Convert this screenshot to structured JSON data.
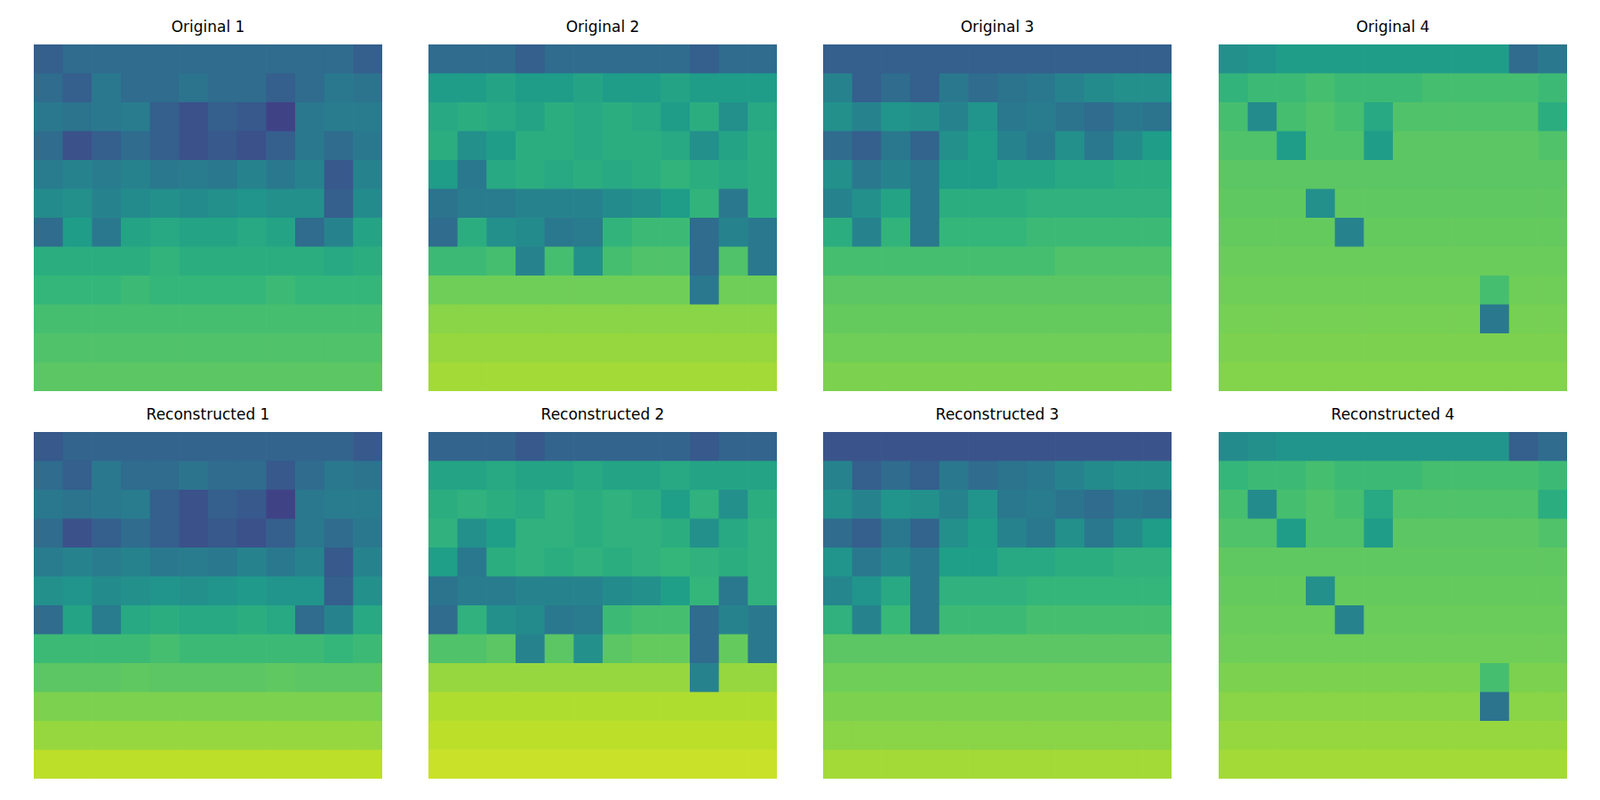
{
  "chart_data": [
    {
      "type": "heatmap",
      "title": "Original 1",
      "tick_labels": false,
      "value_range": [
        0,
        100
      ],
      "cells": [
        [
          30,
          35,
          35,
          35,
          35,
          35,
          35,
          35,
          35,
          35,
          35,
          30
        ],
        [
          35,
          30,
          40,
          35,
          35,
          38,
          35,
          35,
          30,
          35,
          40,
          38
        ],
        [
          40,
          38,
          40,
          42,
          30,
          25,
          30,
          28,
          20,
          40,
          42,
          42
        ],
        [
          35,
          25,
          30,
          35,
          30,
          25,
          28,
          25,
          30,
          40,
          35,
          40
        ],
        [
          42,
          45,
          42,
          45,
          40,
          42,
          40,
          45,
          40,
          45,
          28,
          45
        ],
        [
          48,
          50,
          45,
          48,
          50,
          48,
          50,
          52,
          50,
          50,
          30,
          48
        ],
        [
          35,
          55,
          40,
          58,
          60,
          58,
          58,
          60,
          58,
          35,
          45,
          58
        ],
        [
          62,
          62,
          62,
          62,
          65,
          62,
          62,
          62,
          62,
          62,
          60,
          62
        ],
        [
          66,
          66,
          66,
          68,
          66,
          66,
          66,
          66,
          68,
          66,
          66,
          66
        ],
        [
          70,
          70,
          70,
          70,
          70,
          70,
          70,
          70,
          70,
          70,
          70,
          70
        ],
        [
          72,
          72,
          72,
          72,
          72,
          72,
          72,
          72,
          72,
          72,
          72,
          72
        ],
        [
          74,
          74,
          74,
          74,
          74,
          74,
          74,
          74,
          74,
          74,
          74,
          74
        ]
      ]
    },
    {
      "type": "heatmap",
      "title": "Original 2",
      "tick_labels": false,
      "value_range": [
        0,
        100
      ],
      "cells": [
        [
          35,
          35,
          35,
          30,
          35,
          35,
          35,
          35,
          35,
          30,
          35,
          35
        ],
        [
          55,
          55,
          58,
          55,
          55,
          58,
          55,
          55,
          58,
          55,
          55,
          55
        ],
        [
          60,
          62,
          60,
          58,
          62,
          60,
          62,
          60,
          55,
          62,
          50,
          60
        ],
        [
          62,
          50,
          55,
          62,
          62,
          60,
          62,
          62,
          60,
          50,
          58,
          62
        ],
        [
          55,
          40,
          60,
          62,
          60,
          62,
          60,
          62,
          65,
          62,
          60,
          62
        ],
        [
          38,
          42,
          42,
          45,
          45,
          45,
          48,
          50,
          55,
          65,
          40,
          62
        ],
        [
          35,
          62,
          50,
          48,
          40,
          42,
          65,
          68,
          68,
          35,
          45,
          40
        ],
        [
          68,
          68,
          70,
          45,
          70,
          50,
          70,
          72,
          72,
          35,
          72,
          40
        ],
        [
          78,
          78,
          78,
          78,
          78,
          78,
          78,
          78,
          78,
          40,
          78,
          78
        ],
        [
          82,
          82,
          82,
          82,
          82,
          82,
          82,
          82,
          82,
          82,
          82,
          82
        ],
        [
          84,
          84,
          84,
          84,
          84,
          84,
          84,
          84,
          84,
          84,
          84,
          84
        ],
        [
          86,
          86,
          86,
          86,
          86,
          86,
          86,
          86,
          86,
          86,
          86,
          86
        ]
      ]
    },
    {
      "type": "heatmap",
      "title": "Original 3",
      "tick_labels": false,
      "value_range": [
        0,
        100
      ],
      "cells": [
        [
          30,
          30,
          30,
          30,
          30,
          30,
          30,
          30,
          30,
          30,
          30,
          30
        ],
        [
          45,
          30,
          35,
          30,
          40,
          35,
          38,
          40,
          45,
          48,
          50,
          50
        ],
        [
          50,
          45,
          52,
          50,
          45,
          52,
          40,
          42,
          38,
          35,
          40,
          38
        ],
        [
          35,
          30,
          40,
          32,
          50,
          55,
          45,
          40,
          50,
          40,
          48,
          55
        ],
        [
          50,
          40,
          45,
          40,
          55,
          55,
          58,
          58,
          60,
          60,
          62,
          62
        ],
        [
          45,
          50,
          58,
          40,
          62,
          62,
          62,
          64,
          64,
          64,
          64,
          64
        ],
        [
          62,
          45,
          65,
          40,
          66,
          66,
          66,
          68,
          68,
          68,
          68,
          68
        ],
        [
          70,
          70,
          70,
          70,
          70,
          70,
          70,
          70,
          72,
          72,
          72,
          72
        ],
        [
          74,
          74,
          74,
          74,
          74,
          74,
          74,
          74,
          74,
          74,
          74,
          74
        ],
        [
          76,
          76,
          76,
          76,
          76,
          76,
          76,
          76,
          76,
          76,
          76,
          76
        ],
        [
          78,
          78,
          78,
          78,
          78,
          78,
          78,
          78,
          78,
          78,
          78,
          78
        ],
        [
          80,
          80,
          80,
          80,
          80,
          80,
          80,
          80,
          80,
          80,
          80,
          80
        ]
      ]
    },
    {
      "type": "heatmap",
      "title": "Original 4",
      "tick_labels": false,
      "value_range": [
        0,
        100
      ],
      "cells": [
        [
          50,
          52,
          55,
          55,
          55,
          55,
          55,
          55,
          55,
          55,
          35,
          40
        ],
        [
          65,
          68,
          68,
          70,
          68,
          68,
          68,
          70,
          70,
          70,
          70,
          68
        ],
        [
          70,
          48,
          70,
          72,
          70,
          60,
          72,
          72,
          72,
          72,
          72,
          62
        ],
        [
          72,
          72,
          55,
          72,
          72,
          55,
          74,
          74,
          74,
          74,
          74,
          72
        ],
        [
          74,
          74,
          74,
          74,
          74,
          74,
          74,
          74,
          74,
          74,
          74,
          74
        ],
        [
          75,
          75,
          75,
          50,
          75,
          75,
          75,
          75,
          75,
          75,
          75,
          75
        ],
        [
          76,
          76,
          76,
          76,
          45,
          76,
          76,
          76,
          76,
          76,
          76,
          76
        ],
        [
          77,
          77,
          77,
          77,
          77,
          77,
          77,
          77,
          77,
          77,
          77,
          77
        ],
        [
          78,
          78,
          78,
          78,
          78,
          78,
          78,
          78,
          78,
          70,
          78,
          78
        ],
        [
          79,
          79,
          79,
          79,
          79,
          79,
          79,
          79,
          79,
          40,
          79,
          79
        ],
        [
          80,
          80,
          80,
          80,
          80,
          80,
          80,
          80,
          80,
          80,
          80,
          80
        ],
        [
          81,
          81,
          81,
          81,
          81,
          81,
          81,
          81,
          81,
          81,
          81,
          81
        ]
      ]
    },
    {
      "type": "heatmap",
      "title": "Reconstructed 1",
      "tick_labels": false,
      "value_range": [
        0,
        100
      ],
      "cells": [
        [
          28,
          32,
          32,
          32,
          32,
          32,
          32,
          32,
          32,
          32,
          32,
          28
        ],
        [
          35,
          30,
          40,
          35,
          35,
          38,
          35,
          35,
          28,
          35,
          40,
          38
        ],
        [
          40,
          38,
          40,
          42,
          30,
          25,
          30,
          28,
          20,
          40,
          42,
          42
        ],
        [
          35,
          25,
          30,
          35,
          30,
          25,
          28,
          25,
          30,
          40,
          35,
          40
        ],
        [
          42,
          45,
          42,
          45,
          40,
          42,
          40,
          45,
          40,
          45,
          28,
          45
        ],
        [
          50,
          52,
          48,
          50,
          52,
          50,
          52,
          54,
          52,
          52,
          30,
          50
        ],
        [
          35,
          58,
          42,
          60,
          62,
          60,
          60,
          62,
          60,
          35,
          45,
          60
        ],
        [
          68,
          68,
          68,
          68,
          70,
          68,
          68,
          68,
          68,
          68,
          66,
          68
        ],
        [
          74,
          74,
          74,
          75,
          74,
          74,
          74,
          74,
          75,
          74,
          74,
          74
        ],
        [
          80,
          80,
          80,
          80,
          80,
          80,
          80,
          80,
          80,
          80,
          80,
          80
        ],
        [
          84,
          84,
          84,
          84,
          84,
          84,
          84,
          84,
          84,
          84,
          84,
          84
        ],
        [
          90,
          90,
          90,
          90,
          90,
          90,
          90,
          90,
          90,
          90,
          90,
          90
        ]
      ]
    },
    {
      "type": "heatmap",
      "title": "Reconstructed 2",
      "tick_labels": false,
      "value_range": [
        0,
        100
      ],
      "cells": [
        [
          32,
          32,
          32,
          28,
          32,
          32,
          32,
          32,
          32,
          28,
          32,
          32
        ],
        [
          58,
          58,
          60,
          58,
          58,
          60,
          58,
          58,
          60,
          58,
          58,
          58
        ],
        [
          62,
          64,
          62,
          60,
          64,
          62,
          64,
          62,
          56,
          64,
          50,
          62
        ],
        [
          64,
          50,
          56,
          64,
          64,
          62,
          64,
          64,
          62,
          50,
          60,
          64
        ],
        [
          56,
          40,
          62,
          64,
          62,
          64,
          62,
          64,
          66,
          64,
          62,
          64
        ],
        [
          38,
          42,
          42,
          45,
          45,
          45,
          48,
          50,
          56,
          66,
          40,
          64
        ],
        [
          35,
          64,
          50,
          48,
          40,
          42,
          68,
          70,
          70,
          35,
          45,
          40
        ],
        [
          72,
          72,
          74,
          45,
          74,
          50,
          74,
          76,
          76,
          35,
          76,
          40
        ],
        [
          84,
          84,
          84,
          84,
          84,
          84,
          84,
          84,
          84,
          45,
          84,
          84
        ],
        [
          88,
          88,
          88,
          88,
          88,
          88,
          88,
          88,
          88,
          88,
          88,
          88
        ],
        [
          90,
          90,
          90,
          90,
          90,
          90,
          90,
          90,
          90,
          90,
          90,
          90
        ],
        [
          92,
          92,
          92,
          92,
          92,
          92,
          92,
          92,
          92,
          92,
          92,
          92
        ]
      ]
    },
    {
      "type": "heatmap",
      "title": "Reconstructed 3",
      "tick_labels": false,
      "value_range": [
        0,
        100
      ],
      "cells": [
        [
          26,
          26,
          26,
          26,
          26,
          26,
          26,
          26,
          26,
          26,
          26,
          26
        ],
        [
          45,
          30,
          35,
          30,
          40,
          35,
          38,
          40,
          45,
          48,
          50,
          50
        ],
        [
          50,
          45,
          52,
          50,
          45,
          52,
          40,
          42,
          38,
          35,
          40,
          38
        ],
        [
          35,
          30,
          40,
          32,
          50,
          55,
          45,
          40,
          50,
          40,
          48,
          55
        ],
        [
          52,
          40,
          46,
          40,
          56,
          56,
          60,
          60,
          62,
          62,
          64,
          64
        ],
        [
          46,
          52,
          60,
          40,
          64,
          64,
          64,
          66,
          66,
          66,
          66,
          66
        ],
        [
          64,
          45,
          67,
          40,
          68,
          68,
          68,
          70,
          70,
          70,
          70,
          70
        ],
        [
          74,
          74,
          74,
          74,
          74,
          74,
          74,
          74,
          74,
          74,
          74,
          74
        ],
        [
          78,
          78,
          78,
          78,
          78,
          78,
          78,
          78,
          78,
          78,
          78,
          78
        ],
        [
          80,
          80,
          80,
          80,
          80,
          80,
          80,
          80,
          80,
          80,
          80,
          80
        ],
        [
          82,
          82,
          82,
          82,
          82,
          82,
          82,
          82,
          82,
          82,
          82,
          82
        ],
        [
          86,
          86,
          86,
          86,
          86,
          86,
          86,
          86,
          86,
          86,
          86,
          86
        ]
      ]
    },
    {
      "type": "heatmap",
      "title": "Reconstructed 4",
      "tick_labels": false,
      "value_range": [
        0,
        100
      ],
      "cells": [
        [
          48,
          50,
          52,
          52,
          52,
          52,
          52,
          52,
          52,
          52,
          30,
          35
        ],
        [
          66,
          68,
          68,
          70,
          68,
          68,
          68,
          70,
          70,
          70,
          70,
          68
        ],
        [
          70,
          48,
          70,
          72,
          70,
          60,
          72,
          72,
          72,
          72,
          72,
          62
        ],
        [
          72,
          72,
          55,
          72,
          72,
          55,
          74,
          74,
          74,
          74,
          74,
          72
        ],
        [
          75,
          75,
          75,
          75,
          75,
          75,
          75,
          75,
          75,
          75,
          75,
          75
        ],
        [
          76,
          76,
          76,
          50,
          76,
          76,
          76,
          76,
          76,
          76,
          76,
          76
        ],
        [
          77,
          77,
          77,
          77,
          45,
          77,
          77,
          77,
          77,
          77,
          77,
          77
        ],
        [
          78,
          78,
          78,
          78,
          78,
          78,
          78,
          78,
          78,
          78,
          78,
          78
        ],
        [
          80,
          80,
          80,
          80,
          80,
          80,
          80,
          80,
          80,
          70,
          80,
          80
        ],
        [
          82,
          82,
          82,
          82,
          82,
          82,
          82,
          82,
          82,
          38,
          82,
          82
        ],
        [
          84,
          84,
          84,
          84,
          84,
          84,
          84,
          84,
          84,
          84,
          84,
          84
        ],
        [
          86,
          86,
          86,
          86,
          86,
          86,
          86,
          86,
          86,
          86,
          86,
          86
        ]
      ]
    }
  ]
}
